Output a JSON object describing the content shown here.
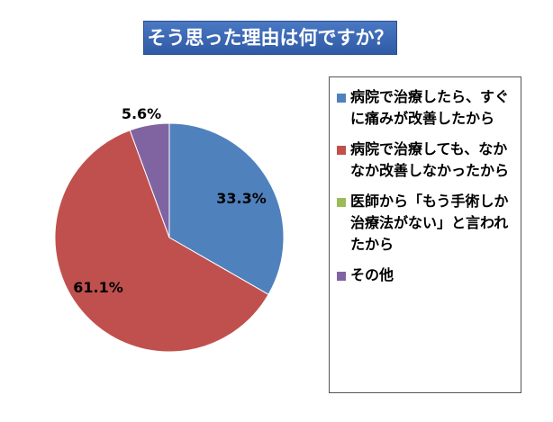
{
  "chart_data": {
    "type": "pie",
    "title": "そう思った理由は何ですか？",
    "slices": [
      {
        "label": "病院で治療したら、すぐに痛みが改善したから",
        "value": 33.3,
        "value_label": "33.3%",
        "color": "#4f81bd"
      },
      {
        "label": "病院で治療しても、なかなか改善しなかったから",
        "value": 61.1,
        "value_label": "61.1%",
        "color": "#c0504d"
      },
      {
        "label": "医師から「もう手術しか治療法がない」と言われたから",
        "value": 0,
        "value_label": "",
        "color": "#9bbb59"
      },
      {
        "label": "その他",
        "value": 5.6,
        "value_label": "5.6%",
        "color": "#8064a2"
      }
    ],
    "legend_position": "right"
  }
}
